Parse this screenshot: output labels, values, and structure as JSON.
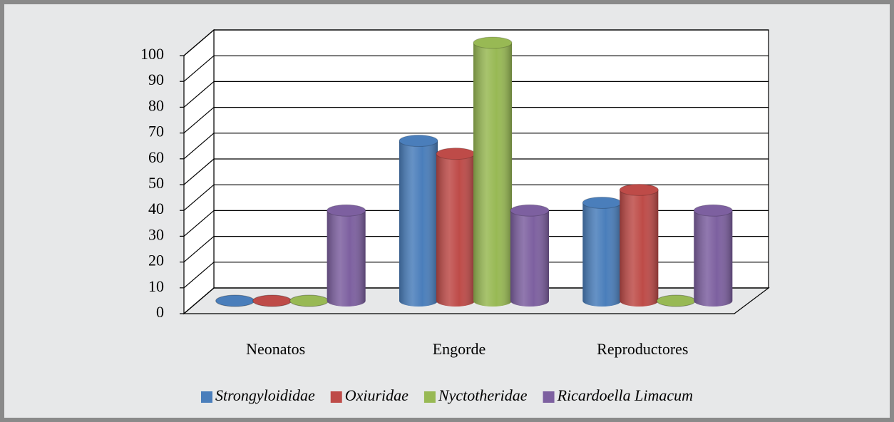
{
  "chart_data": {
    "type": "bar3d",
    "categories": [
      "Neonatos",
      "Engorde",
      "Reproductores"
    ],
    "series": [
      {
        "name": "Strongyloididae",
        "color": "#4a7ebb",
        "values": [
          0,
          62,
          38
        ]
      },
      {
        "name": "Oxiuridae",
        "color": "#be4b48",
        "values": [
          0,
          57,
          43
        ]
      },
      {
        "name": "Nyctotheridae",
        "color": "#98b954",
        "values": [
          0,
          100,
          0
        ]
      },
      {
        "name": "Ricardoella Limacum",
        "color": "#7d60a0",
        "values": [
          35,
          35,
          35
        ]
      }
    ],
    "ylim": [
      0,
      100
    ],
    "yticks": [
      0,
      10,
      20,
      30,
      40,
      50,
      60,
      70,
      80,
      90,
      100
    ],
    "grid": true,
    "legend": "bottom"
  }
}
